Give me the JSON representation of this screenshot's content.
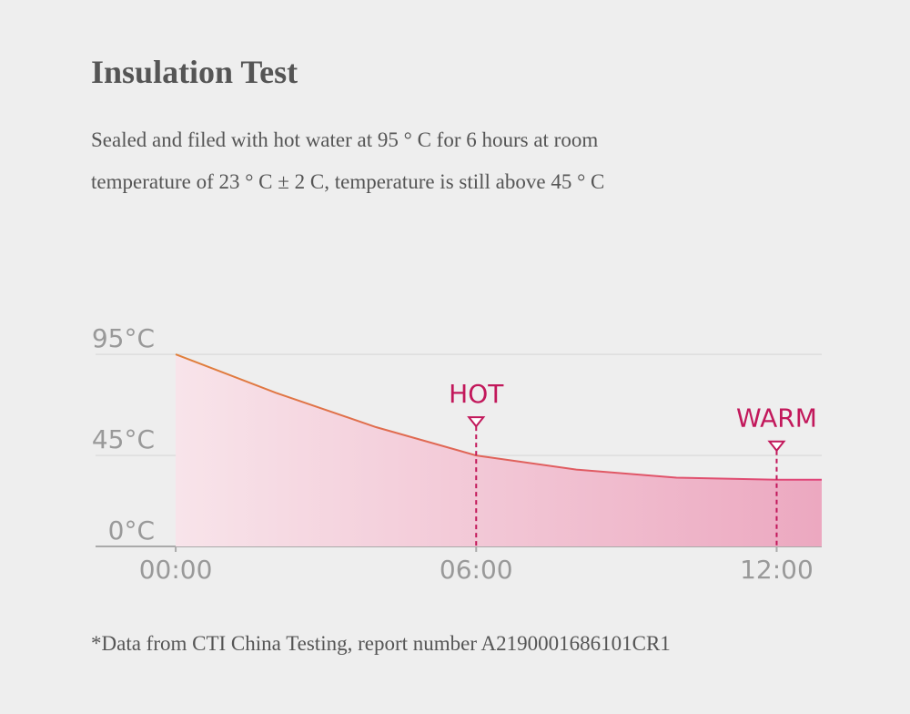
{
  "header": {
    "title": "Insulation Test",
    "description": [
      "Sealed and filed with hot water at 95 ° C for 6 hours at room",
      "temperature of 23 ° C ± 2 C, temperature is still above 45 ° C"
    ]
  },
  "chart_data": {
    "type": "area",
    "x": [
      0,
      2,
      4,
      6,
      8,
      10,
      12,
      12.9
    ],
    "values": [
      95,
      76,
      59,
      45,
      38,
      34,
      33,
      33
    ],
    "color": "#e0457a",
    "line_color_start": "#e0803a",
    "xlim": [
      -1.6,
      12.9
    ],
    "ylim": [
      0,
      100
    ],
    "xticks": [
      {
        "value": 0,
        "label": "00:00"
      },
      {
        "value": 6,
        "label": "06:00"
      },
      {
        "value": 12,
        "label": "12:00"
      }
    ],
    "yticks": [
      {
        "value": 0,
        "label": "0°C"
      },
      {
        "value": 45,
        "label": "45°C"
      },
      {
        "value": 95,
        "label": "95°C"
      }
    ],
    "grid": true,
    "annotations": [
      {
        "x": 6,
        "label": "HOT"
      },
      {
        "x": 12,
        "label": "WARM"
      }
    ],
    "annotation_color": "#c2185b"
  },
  "footnote": "*Data from CTI China Testing, report number A2190001686101CR1"
}
